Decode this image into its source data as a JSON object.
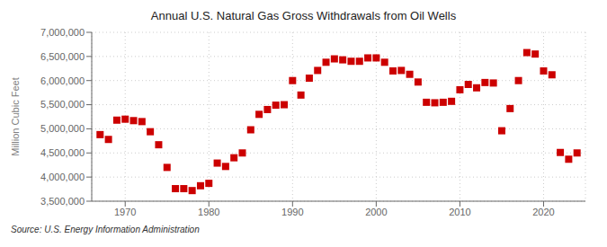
{
  "chart_data": {
    "type": "scatter",
    "title": "Annual U.S. Natural Gas Gross Withdrawals from Oil Wells",
    "ylabel": "Million Cubic Feet",
    "annotations": [
      "Source: U.S. Energy Information Administration"
    ],
    "x": [
      1967,
      1968,
      1969,
      1970,
      1971,
      1972,
      1973,
      1974,
      1975,
      1976,
      1977,
      1978,
      1979,
      1980,
      1981,
      1982,
      1983,
      1984,
      1985,
      1986,
      1987,
      1988,
      1989,
      1990,
      1991,
      1992,
      1993,
      1994,
      1995,
      1996,
      1997,
      1998,
      1999,
      2000,
      2001,
      2002,
      2003,
      2004,
      2005,
      2006,
      2007,
      2008,
      2009,
      2010,
      2011,
      2012,
      2013,
      2014,
      2015,
      2016,
      2017,
      2018,
      2019,
      2020,
      2021,
      2022,
      2023,
      2024
    ],
    "values": [
      4880000,
      4780000,
      5180000,
      5200000,
      5170000,
      5150000,
      4940000,
      4670000,
      4200000,
      3760000,
      3760000,
      3720000,
      3820000,
      3870000,
      4290000,
      4220000,
      4400000,
      4500000,
      4980000,
      5300000,
      5400000,
      5490000,
      5500000,
      6000000,
      5700000,
      6050000,
      6210000,
      6380000,
      6450000,
      6430000,
      6400000,
      6400000,
      6470000,
      6470000,
      6380000,
      6200000,
      6210000,
      6130000,
      5970000,
      5550000,
      5540000,
      5550000,
      5570000,
      5810000,
      5920000,
      5850000,
      5960000,
      5950000,
      4960000,
      5420000,
      6000000,
      6580000,
      6550000,
      6200000,
      6120000,
      4510000,
      4370000,
      4500000
    ],
    "color": "#cc0000",
    "marker": "square",
    "xlim": [
      1966,
      2025
    ],
    "xticks": [
      1970,
      1980,
      1990,
      2000,
      2010,
      2020
    ],
    "ylim": [
      3500000,
      7000000
    ],
    "yticks": [
      {
        "value": 3500000,
        "label": "3,500,000"
      },
      {
        "value": 4000000,
        "label": "4,000,000"
      },
      {
        "value": 4500000,
        "label": "4,500,000"
      },
      {
        "value": 5000000,
        "label": "5,000,000"
      },
      {
        "value": 5500000,
        "label": "5,500,000"
      },
      {
        "value": 6000000,
        "label": "6,000,000"
      },
      {
        "value": 6500000,
        "label": "6,500,000"
      },
      {
        "value": 7000000,
        "label": "7,000,000"
      }
    ],
    "grid": true
  }
}
